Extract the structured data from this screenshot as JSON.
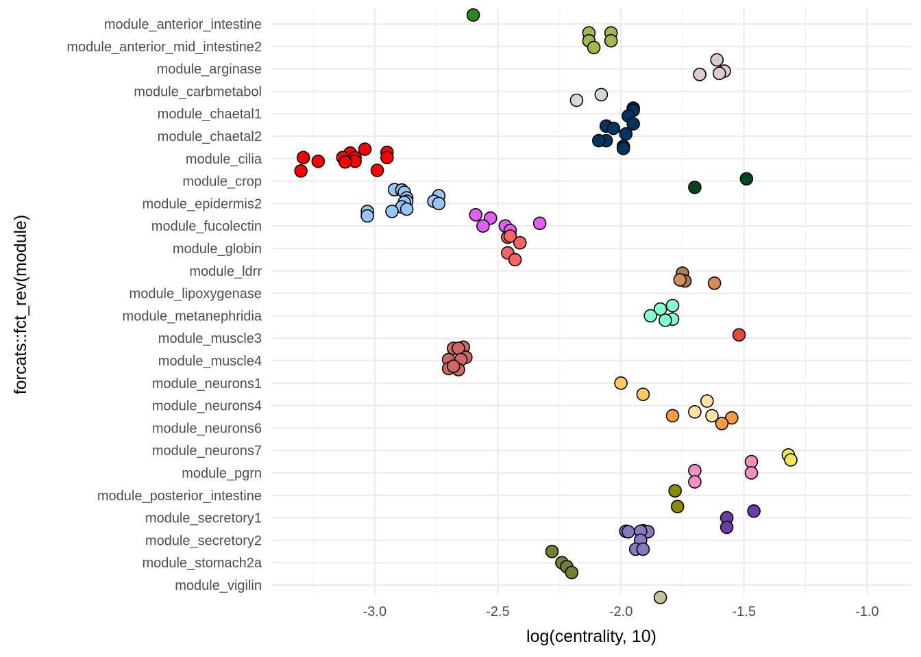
{
  "chart_data": {
    "type": "scatter",
    "title": "",
    "xlabel": "log(centrality, 10)",
    "ylabel": "forcats::fct_rev(module)",
    "xlim": [
      -3.42,
      -0.82
    ],
    "x_ticks": [
      -3.0,
      -2.5,
      -2.0,
      -1.5,
      -1.0
    ],
    "x_tick_labels": [
      "-3.0",
      "-2.5",
      "-2.0",
      "-1.5",
      "-1.0"
    ],
    "grid": true,
    "legend": "none",
    "categories": [
      "module_anterior_intestine",
      "module_anterior_mid_intestine2",
      "module_arginase",
      "module_carbmetabol",
      "module_chaetal1",
      "module_chaetal2",
      "module_cilia",
      "module_crop",
      "module_epidermis2",
      "module_fucolectin",
      "module_globin",
      "module_ldrr",
      "module_lipoxygenase",
      "module_metanephridia",
      "module_muscle3",
      "module_muscle4",
      "module_neurons1",
      "module_neurons4",
      "module_neurons6",
      "module_neurons7",
      "module_pgrn",
      "module_posterior_intestine",
      "module_secretory1",
      "module_secretory2",
      "module_stomach2a",
      "module_vigilin"
    ],
    "series": [
      {
        "category": "module_anterior_intestine",
        "color": "#228b22",
        "points": [
          [
            -2.6,
            0.4
          ]
        ]
      },
      {
        "category": "module_anterior_mid_intestine2",
        "color": "#a2b94a",
        "points": [
          [
            -2.13,
            0.6
          ],
          [
            -2.04,
            0.6
          ],
          [
            -2.04,
            0.25
          ],
          [
            -2.13,
            0.25
          ],
          [
            -2.11,
            -0.05
          ]
        ]
      },
      {
        "category": "module_arginase",
        "color": "#dccbcb",
        "points": [
          [
            -1.61,
            0.4
          ],
          [
            -1.58,
            -0.1
          ],
          [
            -1.6,
            -0.2
          ],
          [
            -1.68,
            -0.25
          ]
        ]
      },
      {
        "category": "module_carbmetabol",
        "color": "#cfdcdc",
        "points": [
          [
            -2.18,
            -0.4
          ],
          [
            -2.08,
            -0.15
          ]
        ]
      },
      {
        "category": "module_chaetal1",
        "color": "#00355f",
        "points": [
          [
            -1.95,
            0.25
          ],
          [
            -1.95,
            0.15
          ],
          [
            -1.97,
            -0.1
          ],
          [
            -1.95,
            -0.45
          ]
        ]
      },
      {
        "category": "module_chaetal2",
        "color": "#00355f",
        "points": [
          [
            -2.06,
            0.45
          ],
          [
            -2.03,
            0.35
          ],
          [
            -1.98,
            0.1
          ],
          [
            -2.06,
            -0.2
          ],
          [
            -2.09,
            -0.2
          ],
          [
            -1.99,
            -0.45
          ],
          [
            -1.99,
            -0.55
          ]
        ]
      },
      {
        "category": "module_cilia",
        "color": "#ff0000",
        "points": [
          [
            -3.04,
            0.42
          ],
          [
            -2.95,
            0.28
          ],
          [
            -3.1,
            0.25
          ],
          [
            -2.95,
            0.05
          ],
          [
            -3.08,
            0.05
          ],
          [
            -3.13,
            0.05
          ],
          [
            -3.29,
            0.05
          ],
          [
            -3.23,
            -0.12
          ],
          [
            -3.08,
            -0.12
          ],
          [
            -3.12,
            -0.15
          ],
          [
            -2.99,
            -0.52
          ],
          [
            -3.3,
            -0.55
          ]
        ]
      },
      {
        "category": "module_crop",
        "color": "#00441b",
        "points": [
          [
            -1.49,
            0.1
          ],
          [
            -1.7,
            -0.28
          ]
        ]
      },
      {
        "category": "module_epidermis2",
        "color": "#99c5f5",
        "points": [
          [
            -2.92,
            0.62
          ],
          [
            -2.89,
            0.6
          ],
          [
            -2.88,
            0.5
          ],
          [
            -2.74,
            0.35
          ],
          [
            -2.87,
            0.25
          ],
          [
            -2.87,
            0.1
          ],
          [
            -2.76,
            0.1
          ],
          [
            -2.88,
            0.05
          ],
          [
            -2.74,
            0.0
          ],
          [
            -2.89,
            -0.15
          ],
          [
            -2.87,
            -0.25
          ],
          [
            -2.93,
            -0.35
          ],
          [
            -3.03,
            -0.35
          ],
          [
            -3.03,
            -0.55
          ]
        ]
      },
      {
        "category": "module_fucolectin",
        "color": "#e35ef5",
        "points": [
          [
            -2.33,
            0.12
          ],
          [
            -2.53,
            0.35
          ],
          [
            -2.59,
            0.5
          ],
          [
            -2.56,
            0.0
          ],
          [
            -2.47,
            0.0
          ],
          [
            -2.45,
            -0.2
          ]
        ]
      },
      {
        "category": "module_globin",
        "color": "#f86565",
        "points": [
          [
            -2.46,
            0.5
          ],
          [
            -2.45,
            0.55
          ],
          [
            -2.41,
            0.25
          ],
          [
            -2.46,
            -0.2
          ],
          [
            -2.43,
            -0.5
          ]
        ]
      },
      {
        "category": "module_ldrr",
        "color": "#b27d51",
        "points": [
          [
            -1.75,
            -0.1
          ],
          [
            -1.74,
            -0.45
          ]
        ]
      },
      {
        "category": "module_lipoxygenase",
        "color": "#d58d58",
        "points": [
          [
            -1.62,
            0.45
          ],
          [
            -1.76,
            0.6
          ]
        ]
      },
      {
        "category": "module_metanephridia",
        "color": "#86ffcc",
        "points": [
          [
            -1.79,
            0.45
          ],
          [
            -1.84,
            0.3
          ],
          [
            -1.88,
            0.0
          ],
          [
            -1.79,
            -0.15
          ],
          [
            -1.82,
            -0.2
          ]
        ]
      },
      {
        "category": "module_muscle3",
        "color": "#e64a3a",
        "points": [
          [
            -1.52,
            0.15
          ]
        ]
      },
      {
        "category": "module_muscle4",
        "color": "#cc6966",
        "points": [
          [
            -2.64,
            0.6
          ],
          [
            -2.68,
            0.55
          ],
          [
            -2.66,
            0.55
          ],
          [
            -2.63,
            0.15
          ],
          [
            -2.7,
            0.05
          ],
          [
            -2.65,
            0.05
          ],
          [
            -2.7,
            -0.35
          ],
          [
            -2.66,
            -0.4
          ],
          [
            -2.68,
            -0.25
          ]
        ]
      },
      {
        "category": "module_neurons1",
        "color": "#fecb61",
        "points": [
          [
            -2.0,
            0.0
          ],
          [
            -1.91,
            -0.5
          ]
        ]
      },
      {
        "category": "module_neurons4",
        "color": "#fee1a3",
        "points": [
          [
            -1.65,
            0.2
          ],
          [
            -1.7,
            -0.28
          ],
          [
            -1.63,
            -0.45
          ]
        ]
      },
      {
        "category": "module_neurons6",
        "color": "#fc9a40",
        "points": [
          [
            -1.79,
            0.55
          ],
          [
            -1.55,
            0.45
          ],
          [
            -1.59,
            0.2
          ]
        ]
      },
      {
        "category": "module_neurons7",
        "color": "#f0e656",
        "points": [
          [
            -1.32,
            -0.2
          ],
          [
            -1.31,
            -0.42
          ]
        ]
      },
      {
        "category": "module_pgrn",
        "color": "#f38fc3",
        "points": [
          [
            -1.47,
            0.5
          ],
          [
            -1.7,
            0.1
          ],
          [
            -1.7,
            -0.4
          ],
          [
            -1.47,
            0.0
          ]
        ]
      },
      {
        "category": "module_posterior_intestine",
        "color": "#8b8b00",
        "points": [
          [
            -1.78,
            0.2
          ],
          [
            -1.77,
            -0.5
          ]
        ]
      },
      {
        "category": "module_secretory1",
        "color": "#6d3ba6",
        "points": [
          [
            -1.46,
            0.3
          ],
          [
            -1.57,
            0.0
          ],
          [
            -1.57,
            -0.42
          ]
        ]
      },
      {
        "category": "module_secretory2",
        "color": "#8a79c0",
        "points": [
          [
            -1.98,
            0.4
          ],
          [
            -1.97,
            0.38
          ],
          [
            -1.91,
            0.42
          ],
          [
            -1.89,
            0.38
          ],
          [
            -1.92,
            0.4
          ],
          [
            -1.92,
            0.0
          ],
          [
            -1.94,
            -0.4
          ],
          [
            -1.91,
            -0.4
          ]
        ]
      },
      {
        "category": "module_stomach2a",
        "color": "#718134",
        "points": [
          [
            -2.28,
            0.5
          ],
          [
            -2.24,
            0.0
          ],
          [
            -2.22,
            -0.18
          ],
          [
            -2.2,
            -0.44
          ]
        ]
      },
      {
        "category": "module_vigilin",
        "color": "#c9c198",
        "points": [
          [
            -1.84,
            -0.55
          ]
        ]
      }
    ]
  }
}
